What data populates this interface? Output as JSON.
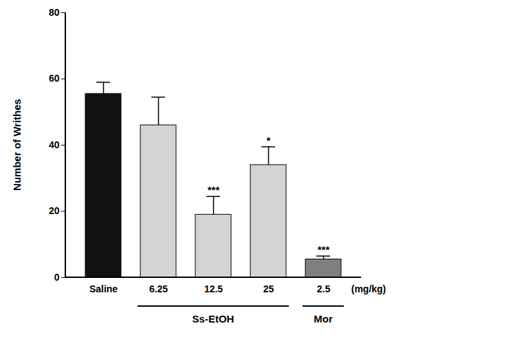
{
  "chart_data": {
    "type": "bar",
    "y_label": "Number of Writhes",
    "x_unit": "(mg/kg)",
    "categories": [
      "Saline",
      "6.25",
      "12.5",
      "25",
      "2.5"
    ],
    "values": [
      55.5,
      46,
      19,
      34,
      5.5
    ],
    "errors": [
      3.5,
      8.5,
      5.5,
      5.5,
      1
    ],
    "significance": [
      null,
      null,
      "***",
      "*",
      "***"
    ],
    "colors": [
      "#111111",
      "#d4d4d4",
      "#d4d4d4",
      "#d4d4d4",
      "#7f7f7f"
    ],
    "groups": [
      {
        "name": "Ss-EtOH",
        "members": [
          "6.25",
          "12.5",
          "25"
        ]
      },
      {
        "name": "Mor",
        "members": [
          "2.5"
        ]
      }
    ],
    "ylim": [
      0,
      80
    ],
    "yticks": [
      0,
      20,
      40,
      60,
      80
    ],
    "grid": false
  }
}
